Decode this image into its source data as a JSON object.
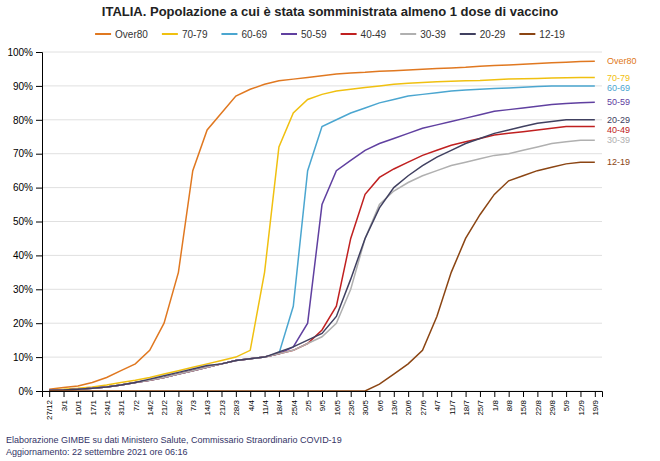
{
  "chart_data": {
    "type": "line",
    "title": "ITALIA. Popolazione a cui è stata somministrata almeno 1 dose di vaccino",
    "footer": [
      "Elaborazione GIMBE su dati Ministero Salute, Commissario Straordinario COVID-19",
      "Aggiornamento: 22 settembre 2021 ore 06:16"
    ],
    "categories": [
      "27/12",
      "3/1",
      "10/1",
      "17/1",
      "24/1",
      "31/1",
      "7/2",
      "14/2",
      "21/2",
      "28/2",
      "7/3",
      "14/3",
      "21/3",
      "28/3",
      "4/4",
      "11/4",
      "18/4",
      "25/4",
      "2/5",
      "9/5",
      "16/5",
      "23/5",
      "30/5",
      "6/6",
      "13/6",
      "20/6",
      "27/6",
      "4/7",
      "11/7",
      "18/7",
      "25/7",
      "1/8",
      "8/8",
      "15/8",
      "22/8",
      "29/8",
      "5/9",
      "12/9",
      "19/9"
    ],
    "series": [
      {
        "name": "Over80",
        "color": "#E07820",
        "values": [
          0.5,
          1.0,
          1.5,
          2.5,
          4.0,
          6.0,
          8.0,
          12.0,
          20.0,
          35.0,
          65.0,
          77.0,
          82.0,
          87.0,
          89.0,
          90.5,
          91.5,
          92.0,
          92.5,
          93.0,
          93.5,
          93.8,
          94.0,
          94.3,
          94.5,
          94.7,
          94.9,
          95.1,
          95.3,
          95.5,
          95.8,
          96.0,
          96.2,
          96.4,
          96.6,
          96.8,
          97.0,
          97.2,
          97.3
        ]
      },
      {
        "name": "70-79",
        "color": "#F0C010",
        "values": [
          0.3,
          0.5,
          0.8,
          1.2,
          1.8,
          2.5,
          3.2,
          4.0,
          5.0,
          6.0,
          7.0,
          8.0,
          9.0,
          10.0,
          12.0,
          35.0,
          72.0,
          82.0,
          86.0,
          87.5,
          88.5,
          89.0,
          89.5,
          90.0,
          90.5,
          90.8,
          91.0,
          91.2,
          91.4,
          91.5,
          91.6,
          91.8,
          92.0,
          92.1,
          92.2,
          92.3,
          92.4,
          92.5,
          92.5
        ]
      },
      {
        "name": "60-69",
        "color": "#4BA6D0",
        "values": [
          0.2,
          0.3,
          0.5,
          0.8,
          1.2,
          1.8,
          2.5,
          3.2,
          4.0,
          5.0,
          6.0,
          7.0,
          8.0,
          9.0,
          9.5,
          10.0,
          11.0,
          25.0,
          65.0,
          78.0,
          80.0,
          82.0,
          83.5,
          85.0,
          86.0,
          87.0,
          87.5,
          88.0,
          88.5,
          88.8,
          89.0,
          89.2,
          89.4,
          89.6,
          89.8,
          90.0,
          90.0,
          90.0,
          90.0
        ]
      },
      {
        "name": "50-59",
        "color": "#6040A0",
        "values": [
          0.2,
          0.3,
          0.5,
          0.8,
          1.2,
          1.8,
          2.5,
          3.2,
          4.0,
          5.0,
          6.0,
          7.0,
          8.0,
          9.0,
          9.5,
          10.0,
          11.0,
          13.0,
          20.0,
          55.0,
          65.0,
          68.0,
          71.0,
          73.0,
          74.5,
          76.0,
          77.5,
          78.5,
          79.5,
          80.5,
          81.5,
          82.5,
          83.0,
          83.5,
          84.0,
          84.5,
          84.8,
          85.0,
          85.2
        ]
      },
      {
        "name": "40-49",
        "color": "#C02020",
        "values": [
          0.2,
          0.3,
          0.5,
          0.8,
          1.2,
          1.8,
          2.5,
          3.2,
          4.0,
          5.0,
          6.0,
          7.0,
          8.0,
          9.0,
          9.5,
          10.0,
          11.0,
          12.0,
          14.0,
          18.0,
          25.0,
          45.0,
          58.0,
          63.0,
          65.5,
          67.5,
          69.5,
          71.0,
          72.5,
          73.5,
          74.5,
          75.5,
          76.0,
          76.5,
          77.0,
          77.5,
          78.0,
          78.0,
          78.0
        ]
      },
      {
        "name": "30-39",
        "color": "#B0B0B0",
        "values": [
          0.2,
          0.3,
          0.5,
          0.8,
          1.2,
          1.8,
          2.5,
          3.2,
          4.0,
          5.0,
          6.0,
          7.0,
          8.0,
          9.0,
          9.5,
          10.0,
          11.0,
          12.0,
          14.0,
          16.0,
          20.0,
          30.0,
          45.0,
          55.0,
          59.0,
          61.5,
          63.5,
          65.0,
          66.5,
          67.5,
          68.5,
          69.5,
          70.0,
          71.0,
          72.0,
          73.0,
          73.5,
          74.0,
          74.0
        ]
      },
      {
        "name": "20-29",
        "color": "#404060",
        "values": [
          0.2,
          0.3,
          0.5,
          0.8,
          1.2,
          1.8,
          2.5,
          3.5,
          4.5,
          5.5,
          6.5,
          7.5,
          8.0,
          9.0,
          9.5,
          10.0,
          11.5,
          13.0,
          15.0,
          17.0,
          22.0,
          33.0,
          45.0,
          54.0,
          60.0,
          63.5,
          66.5,
          69.0,
          71.0,
          73.0,
          74.5,
          76.0,
          77.0,
          78.0,
          79.0,
          79.5,
          80.0,
          80.0,
          80.0
        ]
      },
      {
        "name": "12-19",
        "color": "#8B4513",
        "values": [
          0,
          0,
          0,
          0,
          0,
          0,
          0,
          0,
          0,
          0,
          0,
          0,
          0,
          0,
          0,
          0,
          0,
          0,
          0,
          0,
          0,
          0,
          0,
          2.0,
          5.0,
          8.0,
          12.0,
          22.0,
          35.0,
          45.0,
          52.0,
          58.0,
          62.0,
          63.5,
          65.0,
          66.0,
          67.0,
          67.5,
          67.5
        ]
      }
    ],
    "ylim": [
      0,
      100
    ],
    "yticks": [
      {
        "value": 0,
        "label": "0%"
      },
      {
        "value": 10,
        "label": "10%"
      },
      {
        "value": 20,
        "label": "20%"
      },
      {
        "value": 30,
        "label": "30%"
      },
      {
        "value": 40,
        "label": "40%"
      },
      {
        "value": 50,
        "label": "50%"
      },
      {
        "value": 60,
        "label": "60%"
      },
      {
        "value": 70,
        "label": "70%"
      },
      {
        "value": 80,
        "label": "80%"
      },
      {
        "value": 90,
        "label": "90%"
      },
      {
        "value": 100,
        "label": "100%"
      }
    ],
    "grid": true,
    "legend": "top",
    "annotations": [
      {
        "text": "Over80",
        "y": 97.3,
        "color": "#E07820"
      },
      {
        "text": "70-79",
        "y": 92.5,
        "color": "#F0C010"
      },
      {
        "text": "60-69",
        "y": 90.0,
        "color": "#4BA6D0"
      },
      {
        "text": "50-59",
        "y": 85.2,
        "color": "#6040A0"
      },
      {
        "text": "20-29",
        "y": 80.0,
        "color": "#404060"
      },
      {
        "text": "40-49",
        "y": 78.0,
        "color": "#C02020"
      },
      {
        "text": "30-39",
        "y": 74.0,
        "color": "#B0B0B0"
      },
      {
        "text": "12-19",
        "y": 67.5,
        "color": "#8B4513"
      }
    ]
  }
}
